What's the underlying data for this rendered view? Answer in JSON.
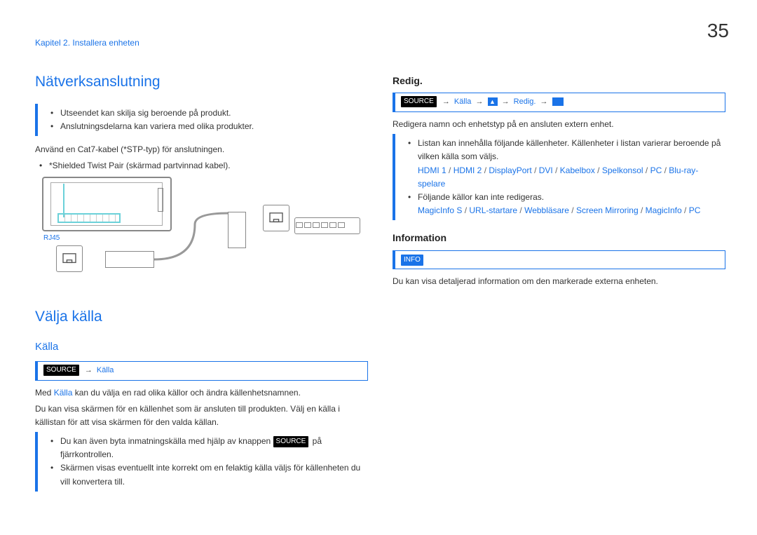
{
  "page_number": "35",
  "chapter": "Kapitel 2. Installera enheten",
  "left": {
    "h1_network": "Nätverksanslutning",
    "note_bullets": [
      "Utseendet kan skilja sig beroende på produkt.",
      "Anslutningsdelarna kan variera med olika produkter."
    ],
    "cat7_text": "Använd en Cat7-kabel (*STP-typ) för anslutningen.",
    "cat7_sub": "*Shielded Twist Pair (skärmad partvinnad kabel).",
    "rj45_label": "RJ45",
    "h1_source": "Välja källa",
    "h2_kalla": "Källa",
    "cmd_kalla_label": "Källa",
    "source_tag": "SOURCE",
    "p_med_kalla_pre": "Med ",
    "p_med_kalla_link": "Källa",
    "p_med_kalla_post": " kan du välja en rad olika källor och ändra källenhetsnamnen.",
    "p_visa": "Du kan visa skärmen för en källenhet som är ansluten till produkten. Välj en källa i källistan för att visa skärmen för den valda källan.",
    "kalla_bullets_pre": "Du kan även byta inmatningskälla med hjälp av knappen ",
    "kalla_bullets_post": " på fjärrkontrollen.",
    "kalla_bullet2": "Skärmen visas eventuellt inte korrekt om en felaktig källa väljs för källenheten du vill konvertera till."
  },
  "right": {
    "h3_redig": "Redig.",
    "cmd_redig_kalla": "Källa",
    "cmd_redig_redig": "Redig.",
    "p_redigera": "Redigera namn och enhetstyp på en ansluten extern enhet.",
    "redig_bullet1": "Listan kan innehålla följande källenheter. Källenheter i listan varierar beroende på vilken källa som väljs.",
    "sources_line1": [
      "HDMI 1",
      "HDMI 2",
      "DisplayPort",
      "DVI",
      "Kabelbox",
      "Spelkonsol",
      "PC",
      "Blu-ray-spelare"
    ],
    "redig_bullet2": "Följande källor kan inte redigeras.",
    "sources_line2": [
      "MagicInfo S",
      "URL-startare",
      "Webbläsare",
      "Screen Mirroring",
      "MagicInfo",
      "PC"
    ],
    "h3_info": "Information",
    "info_tag": "INFO",
    "p_info": "Du kan visa detaljerad information om den markerade externa enheten."
  }
}
